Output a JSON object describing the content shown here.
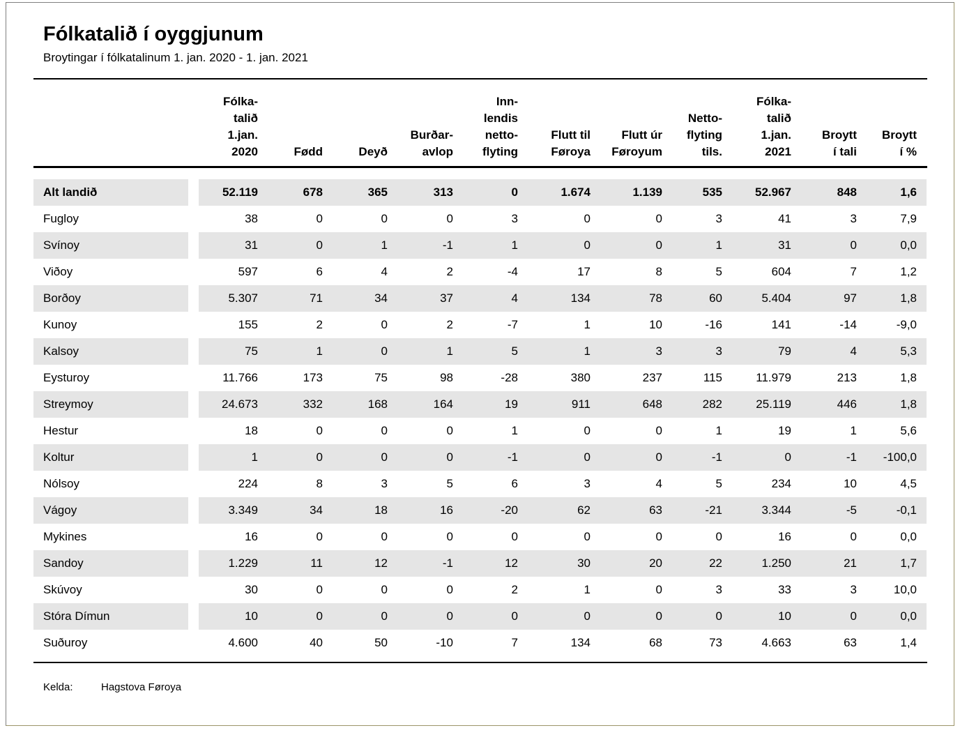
{
  "page": {
    "title": "Fólkatalið í oyggjunum",
    "subtitle": "Broytingar í fólkatalinum 1. jan. 2020 - 1. jan. 2021",
    "source_label": "Kelda:",
    "source_value": "Hagstova Føroya"
  },
  "colors": {
    "stripe": "#e5e5e5",
    "rule": "#000000",
    "border_top_left": "#7f7f7f",
    "border_bottom_right": "#9c9468"
  },
  "table": {
    "column_headers": [
      "",
      "Fólka-\ntalið\n1.jan.\n2020",
      "Fødd",
      "Deyð",
      "Burðar-\navlop",
      "Inn-\nlendis\nnetto-\nflyting",
      "Flutt til\nFøroya",
      "Flutt úr\nFøroyum",
      "Netto-\nflyting\ntils.",
      "Fólka-\ntalið\n1.jan.\n2021",
      "Broytt\ní tali",
      "Broytt\ní %"
    ],
    "rows": [
      {
        "name": "Alt landið",
        "emphasis": true,
        "values": [
          "52.119",
          "678",
          "365",
          "313",
          "0",
          "1.674",
          "1.139",
          "535",
          "52.967",
          "848",
          "1,6"
        ]
      },
      {
        "name": "Fugloy",
        "emphasis": false,
        "values": [
          "38",
          "0",
          "0",
          "0",
          "3",
          "0",
          "0",
          "3",
          "41",
          "3",
          "7,9"
        ]
      },
      {
        "name": "Svínoy",
        "emphasis": false,
        "values": [
          "31",
          "0",
          "1",
          "-1",
          "1",
          "0",
          "0",
          "1",
          "31",
          "0",
          "0,0"
        ]
      },
      {
        "name": "Viðoy",
        "emphasis": false,
        "values": [
          "597",
          "6",
          "4",
          "2",
          "-4",
          "17",
          "8",
          "5",
          "604",
          "7",
          "1,2"
        ]
      },
      {
        "name": "Borðoy",
        "emphasis": false,
        "values": [
          "5.307",
          "71",
          "34",
          "37",
          "4",
          "134",
          "78",
          "60",
          "5.404",
          "97",
          "1,8"
        ]
      },
      {
        "name": "Kunoy",
        "emphasis": false,
        "values": [
          "155",
          "2",
          "0",
          "2",
          "-7",
          "1",
          "10",
          "-16",
          "141",
          "-14",
          "-9,0"
        ]
      },
      {
        "name": "Kalsoy",
        "emphasis": false,
        "values": [
          "75",
          "1",
          "0",
          "1",
          "5",
          "1",
          "3",
          "3",
          "79",
          "4",
          "5,3"
        ]
      },
      {
        "name": "Eysturoy",
        "emphasis": false,
        "values": [
          "11.766",
          "173",
          "75",
          "98",
          "-28",
          "380",
          "237",
          "115",
          "11.979",
          "213",
          "1,8"
        ]
      },
      {
        "name": "Streymoy",
        "emphasis": false,
        "values": [
          "24.673",
          "332",
          "168",
          "164",
          "19",
          "911",
          "648",
          "282",
          "25.119",
          "446",
          "1,8"
        ]
      },
      {
        "name": "Hestur",
        "emphasis": false,
        "values": [
          "18",
          "0",
          "0",
          "0",
          "1",
          "0",
          "0",
          "1",
          "19",
          "1",
          "5,6"
        ]
      },
      {
        "name": "Koltur",
        "emphasis": false,
        "values": [
          "1",
          "0",
          "0",
          "0",
          "-1",
          "0",
          "0",
          "-1",
          "0",
          "-1",
          "-100,0"
        ]
      },
      {
        "name": "Nólsoy",
        "emphasis": false,
        "values": [
          "224",
          "8",
          "3",
          "5",
          "6",
          "3",
          "4",
          "5",
          "234",
          "10",
          "4,5"
        ]
      },
      {
        "name": "Vágoy",
        "emphasis": false,
        "values": [
          "3.349",
          "34",
          "18",
          "16",
          "-20",
          "62",
          "63",
          "-21",
          "3.344",
          "-5",
          "-0,1"
        ]
      },
      {
        "name": "Mykines",
        "emphasis": false,
        "values": [
          "16",
          "0",
          "0",
          "0",
          "0",
          "0",
          "0",
          "0",
          "16",
          "0",
          "0,0"
        ]
      },
      {
        "name": "Sandoy",
        "emphasis": false,
        "values": [
          "1.229",
          "11",
          "12",
          "-1",
          "12",
          "30",
          "20",
          "22",
          "1.250",
          "21",
          "1,7"
        ]
      },
      {
        "name": "Skúvoy",
        "emphasis": false,
        "values": [
          "30",
          "0",
          "0",
          "0",
          "2",
          "1",
          "0",
          "3",
          "33",
          "3",
          "10,0"
        ]
      },
      {
        "name": "Stóra Dímun",
        "emphasis": false,
        "values": [
          "10",
          "0",
          "0",
          "0",
          "0",
          "0",
          "0",
          "0",
          "10",
          "0",
          "0,0"
        ]
      },
      {
        "name": "Suðuroy",
        "emphasis": false,
        "values": [
          "4.600",
          "40",
          "50",
          "-10",
          "7",
          "134",
          "68",
          "73",
          "4.663",
          "63",
          "1,4"
        ]
      }
    ]
  }
}
